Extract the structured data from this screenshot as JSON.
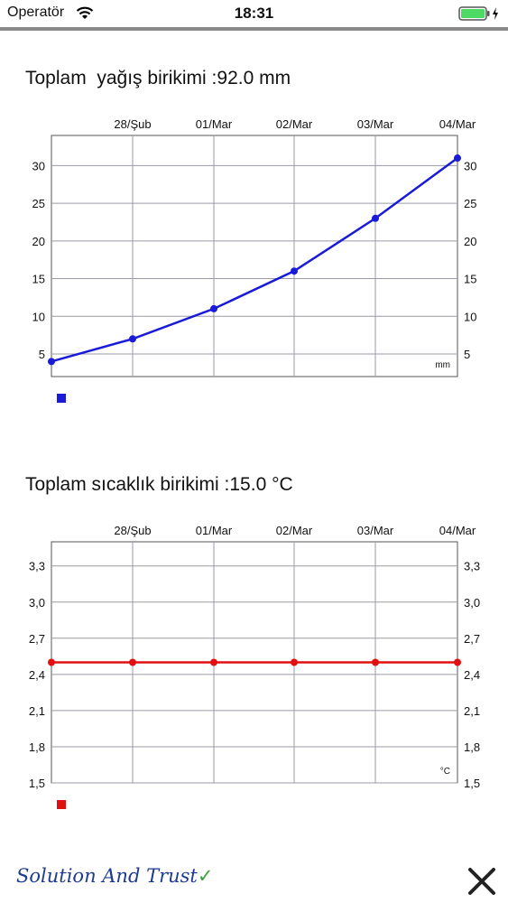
{
  "status_bar": {
    "carrier": "Operatör",
    "time": "18:31"
  },
  "charts": [
    {
      "title": "Toplam  yağış birikimi :92.0 mm",
      "unit": "mm",
      "color": "#1a1ad9",
      "top_labels": [
        "28/Şub",
        "01/Mar",
        "02/Mar",
        "03/Mar",
        "04/Mar"
      ],
      "y_ticks": [
        "5",
        "10",
        "15",
        "20",
        "25",
        "30"
      ],
      "ylim": [
        2,
        34
      ]
    },
    {
      "title": "Toplam sıcaklık birikimi :15.0 °C",
      "unit": "°C",
      "color": "#e01010",
      "top_labels": [
        "28/Şub",
        "01/Mar",
        "02/Mar",
        "03/Mar",
        "04/Mar"
      ],
      "y_ticks": [
        "1,5",
        "1,8",
        "2,1",
        "2,4",
        "2,7",
        "3,0",
        "3,3"
      ],
      "ylim": [
        1.5,
        3.5
      ]
    }
  ],
  "chart_data": [
    {
      "type": "line",
      "title": "Toplam  yağış birikimi :92.0 mm",
      "categories": [
        "",
        "28/Şub",
        "01/Mar",
        "02/Mar",
        "03/Mar",
        "04/Mar"
      ],
      "values": [
        4,
        7,
        11,
        16,
        23,
        31
      ],
      "ylabel": "mm",
      "ylim": [
        2,
        34
      ],
      "grid": true
    },
    {
      "type": "line",
      "title": "Toplam sıcaklık birikimi :15.0 °C",
      "categories": [
        "",
        "28/Şub",
        "01/Mar",
        "02/Mar",
        "03/Mar",
        "04/Mar"
      ],
      "values": [
        2.5,
        2.5,
        2.5,
        2.5,
        2.5,
        2.5
      ],
      "ylabel": "°C",
      "ylim": [
        1.5,
        3.5
      ],
      "grid": true
    }
  ],
  "footer": {
    "logo_text": "Solution And Trust",
    "logo_check": "✓"
  }
}
